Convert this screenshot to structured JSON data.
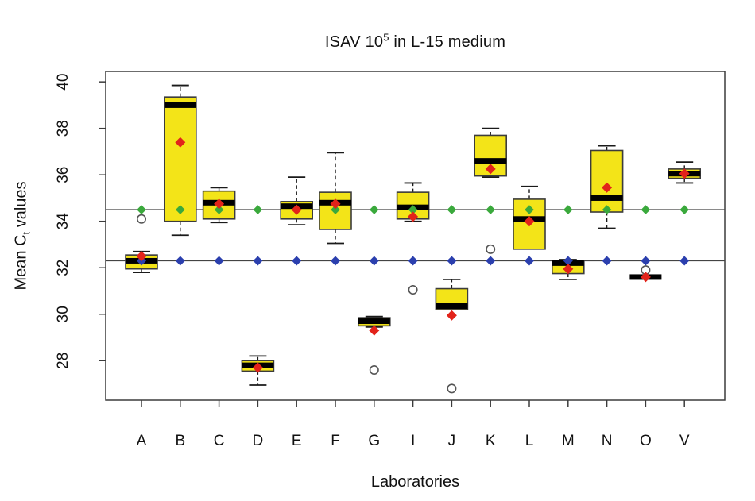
{
  "chart_data": {
    "type": "boxplot",
    "title": {
      "prefix": "ISAV 10",
      "sup": "5",
      "suffix": " in L-15 medium"
    },
    "xlabel": "Laboratories",
    "ylabel": {
      "prefix": "Mean C",
      "sub": "t",
      "suffix": " values"
    },
    "categories": [
      "A",
      "B",
      "C",
      "D",
      "E",
      "F",
      "G",
      "I",
      "J",
      "K",
      "L",
      "M",
      "N",
      "O",
      "V"
    ],
    "y_ticks": [
      28,
      30,
      32,
      34,
      36,
      38,
      40
    ],
    "ylim": [
      26.3,
      40.45
    ],
    "grid": false,
    "legend": "none",
    "reference_lines": [
      {
        "name": "upper-reference",
        "value": 34.5,
        "marker_color": "#3aa93c"
      },
      {
        "name": "lower-reference",
        "value": 32.3,
        "marker_color": "#2b3fae"
      }
    ],
    "boxes": [
      {
        "lab": "A",
        "whisker_low": 31.8,
        "q1": 31.95,
        "median": 32.3,
        "q3": 32.55,
        "whisker_high": 32.7,
        "mean": 32.5,
        "outliers": [
          34.1
        ]
      },
      {
        "lab": "B",
        "whisker_low": 33.4,
        "q1": 34.0,
        "median": 39.0,
        "q3": 39.35,
        "whisker_high": 39.85,
        "mean": 37.4,
        "outliers": []
      },
      {
        "lab": "C",
        "whisker_low": 33.95,
        "q1": 34.1,
        "median": 34.8,
        "q3": 35.3,
        "whisker_high": 35.45,
        "mean": 34.75,
        "outliers": []
      },
      {
        "lab": "D",
        "whisker_low": 26.95,
        "q1": 27.55,
        "median": 27.8,
        "q3": 28.0,
        "whisker_high": 28.2,
        "mean": 27.7,
        "outliers": []
      },
      {
        "lab": "E",
        "whisker_low": 33.85,
        "q1": 34.1,
        "median": 34.65,
        "q3": 34.85,
        "whisker_high": 35.9,
        "mean": 34.5,
        "outliers": []
      },
      {
        "lab": "F",
        "whisker_low": 33.05,
        "q1": 33.65,
        "median": 34.8,
        "q3": 35.25,
        "whisker_high": 36.95,
        "mean": 34.75,
        "outliers": []
      },
      {
        "lab": "G",
        "whisker_low": 29.45,
        "q1": 29.5,
        "median": 29.7,
        "q3": 29.85,
        "whisker_high": 29.9,
        "mean": 29.3,
        "outliers": [
          27.6
        ]
      },
      {
        "lab": "I",
        "whisker_low": 34.0,
        "q1": 34.1,
        "median": 34.6,
        "q3": 35.25,
        "whisker_high": 35.65,
        "mean": 34.2,
        "outliers": [
          31.05
        ]
      },
      {
        "lab": "J",
        "whisker_low": 30.2,
        "q1": 30.2,
        "median": 30.35,
        "q3": 31.1,
        "whisker_high": 31.5,
        "mean": 29.95,
        "outliers": [
          26.8
        ]
      },
      {
        "lab": "K",
        "whisker_low": 35.9,
        "q1": 35.95,
        "median": 36.6,
        "q3": 37.7,
        "whisker_high": 38.0,
        "mean": 36.25,
        "outliers": [
          32.8
        ]
      },
      {
        "lab": "L",
        "whisker_low": 32.8,
        "q1": 32.8,
        "median": 34.1,
        "q3": 34.95,
        "whisker_high": 35.5,
        "mean": 34.0,
        "outliers": []
      },
      {
        "lab": "M",
        "whisker_low": 31.5,
        "q1": 31.75,
        "median": 32.2,
        "q3": 32.3,
        "whisker_high": 32.35,
        "mean": 31.95,
        "outliers": []
      },
      {
        "lab": "N",
        "whisker_low": 33.7,
        "q1": 34.4,
        "median": 35.0,
        "q3": 37.05,
        "whisker_high": 37.25,
        "mean": 35.45,
        "outliers": []
      },
      {
        "lab": "O",
        "whisker_low": 31.6,
        "q1": 31.6,
        "median": 31.6,
        "q3": 31.6,
        "whisker_high": 31.6,
        "mean": 31.6,
        "outliers": [
          31.9
        ]
      },
      {
        "lab": "V",
        "whisker_low": 35.65,
        "q1": 35.85,
        "median": 36.05,
        "q3": 36.25,
        "whisker_high": 36.55,
        "mean": 36.05,
        "outliers": []
      }
    ],
    "colors": {
      "box_fill": "#f3e418",
      "box_border": "#3c3c3c",
      "median": "#000000",
      "mean_marker": "#e2231a",
      "upper_ref_marker": "#3aa93c",
      "lower_ref_marker": "#2b3fae",
      "reference_line": "#444444",
      "whisker": "#1a1a1a",
      "outlier_stroke": "#555555",
      "axis": "#3c3c3c"
    }
  }
}
